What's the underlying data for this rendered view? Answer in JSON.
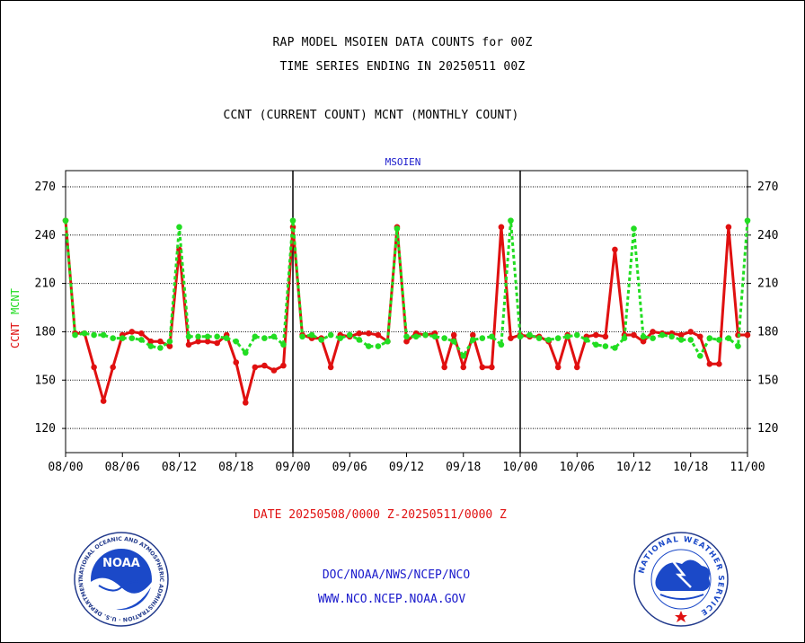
{
  "header": {
    "line1": "RAP MODEL MSOIEN DATA COUNTS for 00Z",
    "line2": "TIME SERIES ENDING IN 20250511 00Z",
    "line3": "CCNT (CURRENT COUNT) MCNT (MONTHLY COUNT)"
  },
  "footer": {
    "date_range": "DATE 20250508/0000 Z-20250511/0000 Z",
    "org": "DOC/NOAA/NWS/NCEP/NCO",
    "url": "WWW.NCO.NCEP.NOAA.GOV"
  },
  "logos": {
    "noaa_text": "NOAA",
    "noaa_ring": "NATIONAL OCEANIC AND ATMOSPHERIC ADMINISTRATION · U.S. DEPARTMENT OF COMMERCE ·",
    "nws_ring": "NATIONAL WEATHER SERVICE"
  },
  "chart_data": {
    "type": "line",
    "title": "MSOIEN",
    "x_tick_labels": [
      "08/00",
      "08/06",
      "08/12",
      "08/18",
      "09/00",
      "09/06",
      "09/12",
      "09/18",
      "10/00",
      "10/06",
      "10/12",
      "10/18",
      "11/00"
    ],
    "x_hours_range": [
      0,
      72
    ],
    "panel_dividers": [
      24,
      48
    ],
    "ylim": [
      105,
      280
    ],
    "y_ticks": [
      120,
      150,
      180,
      210,
      240,
      270
    ],
    "grid": true,
    "series": [
      {
        "name": "CCNT",
        "color": "#e01010",
        "x": [
          0,
          1,
          2,
          3,
          4,
          5,
          6,
          7,
          8,
          9,
          10,
          11,
          12,
          13,
          14,
          15,
          16,
          17,
          18,
          19,
          20,
          21,
          22,
          23,
          24,
          25,
          26,
          27,
          28,
          29,
          30,
          31,
          32,
          33,
          34,
          35,
          36,
          37,
          38,
          39,
          40,
          41,
          42,
          43,
          44,
          45,
          46,
          47,
          48,
          49,
          50,
          51,
          52,
          53,
          54,
          55,
          56,
          57,
          58,
          59,
          60,
          61,
          62,
          63,
          64,
          65,
          66,
          67,
          68,
          69,
          70,
          71,
          72
        ],
        "values": [
          249,
          179,
          179,
          158,
          137,
          158,
          178,
          180,
          179,
          174,
          174,
          171,
          231,
          172,
          174,
          174,
          173,
          178,
          161,
          136,
          158,
          159,
          156,
          159,
          245,
          178,
          176,
          176,
          158,
          178,
          177,
          179,
          179,
          178,
          174,
          245,
          174,
          179,
          178,
          179,
          158,
          178,
          158,
          178,
          158,
          158,
          245,
          176,
          178,
          177,
          177,
          174,
          158,
          178,
          158,
          177,
          178,
          177,
          231,
          178,
          178,
          174,
          180,
          179,
          179,
          178,
          180,
          177,
          160,
          160,
          245,
          178,
          178
        ]
      },
      {
        "name": "MCNT",
        "color": "#22dd22",
        "x": [
          0,
          1,
          2,
          3,
          4,
          5,
          6,
          7,
          8,
          9,
          10,
          11,
          12,
          13,
          14,
          15,
          16,
          17,
          18,
          19,
          20,
          21,
          22,
          23,
          24,
          25,
          26,
          27,
          28,
          29,
          30,
          31,
          32,
          33,
          34,
          35,
          36,
          37,
          38,
          39,
          40,
          41,
          42,
          43,
          44,
          45,
          46,
          47,
          48,
          49,
          50,
          51,
          52,
          53,
          54,
          55,
          56,
          57,
          58,
          59,
          60,
          61,
          62,
          63,
          64,
          65,
          66,
          67,
          68,
          69,
          70,
          71,
          72
        ],
        "values": [
          249,
          178,
          179,
          178,
          178,
          176,
          176,
          176,
          175,
          171,
          170,
          174,
          245,
          177,
          177,
          177,
          177,
          176,
          174,
          167,
          177,
          176,
          177,
          172,
          249,
          177,
          178,
          175,
          178,
          176,
          178,
          175,
          171,
          171,
          174,
          244,
          177,
          177,
          178,
          177,
          176,
          174,
          165,
          175,
          176,
          177,
          172,
          249,
          177,
          178,
          176,
          175,
          176,
          177,
          178,
          175,
          172,
          171,
          170,
          176,
          244,
          177,
          176,
          178,
          177,
          175,
          175,
          165,
          176,
          175,
          176,
          171,
          249
        ]
      }
    ],
    "y_axis_label_series": [
      "CCNT",
      "MCNT"
    ]
  }
}
